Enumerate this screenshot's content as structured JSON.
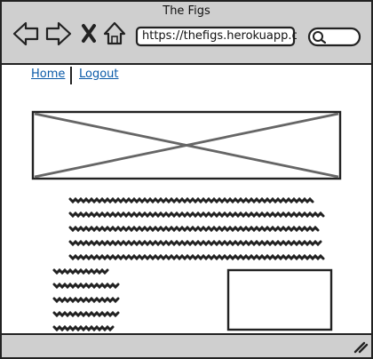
{
  "window": {
    "title": "The Figs"
  },
  "address_bar": {
    "url": "https://thefigs.herokuapp.co"
  },
  "search": {
    "icon": "search-icon"
  },
  "nav": {
    "items": [
      {
        "label": "Home"
      },
      {
        "label": "Logout"
      }
    ]
  },
  "toolbar_icons": [
    "back-arrow-icon",
    "forward-arrow-icon",
    "close-x-icon",
    "home-icon"
  ],
  "colors": {
    "chrome": "#cfcfcf",
    "link": "#0a5aa8",
    "stroke": "#222222"
  }
}
